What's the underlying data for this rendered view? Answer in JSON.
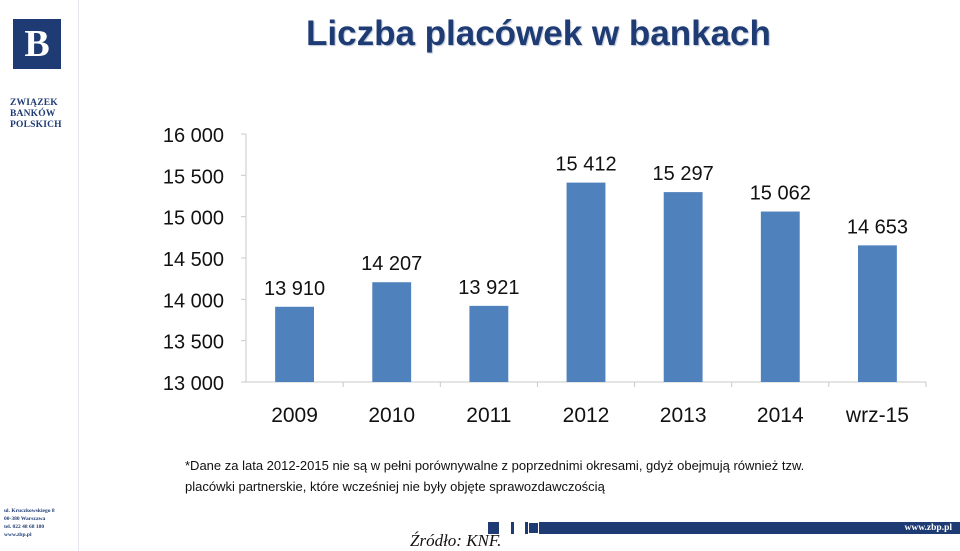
{
  "header": {
    "title": "Liczba placówek w bankach"
  },
  "branding": {
    "logo_letter": "B",
    "org_name_lines": [
      "ZWIĄZEK",
      "BANKÓW",
      "POLSKICH"
    ],
    "address_lines": [
      "ul. Kruczkowskiego 8",
      "00-380 Warszawa",
      "tel. 022 48 68 180",
      "www.zbp.pl"
    ],
    "website": "www.zbp.pl",
    "colors": {
      "brand": "#1f3b73",
      "bar": "#4f81bd"
    }
  },
  "notes": {
    "line1": "*Dane za lata 2012-2015 nie są w pełni porównywalne z poprzednimi okresami, gdyż obejmują również tzw.",
    "line2": "placówki partnerskie, które wcześniej nie były objęte sprawozdawczością",
    "source": "Źródło: KNF."
  },
  "chart_data": {
    "type": "bar",
    "title": "Liczba placówek w bankach",
    "categories": [
      "2009",
      "2010",
      "2011",
      "2012",
      "2013",
      "2014",
      "wrz-15"
    ],
    "values": [
      13910,
      14207,
      13921,
      15412,
      15297,
      15062,
      14653
    ],
    "value_labels": [
      "13 910",
      "14 207",
      "13 921",
      "15 412",
      "15 297",
      "15 062",
      "14 653"
    ],
    "ylim": [
      13000,
      16000
    ],
    "yticks": [
      13000,
      13500,
      14000,
      14500,
      15000,
      15500,
      16000
    ],
    "ytick_labels": [
      "13 000",
      "13 500",
      "14 000",
      "14 500",
      "15 000",
      "15 500",
      "16 000"
    ],
    "xlabel": "",
    "ylabel": "",
    "grid": false,
    "legend": "none",
    "bar_color": "#4f81bd"
  }
}
